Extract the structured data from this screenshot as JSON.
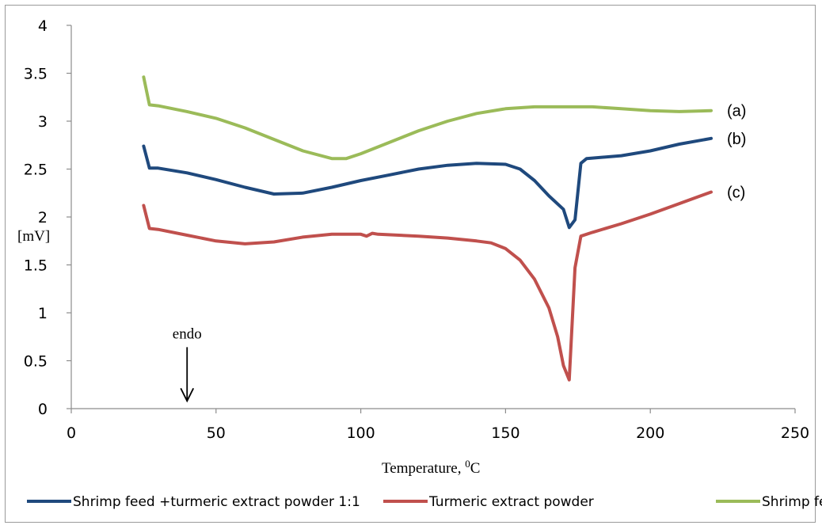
{
  "chart_data": {
    "type": "line",
    "xlabel": "Temperature, ",
    "xlabel_sup": "0",
    "xlabel_unit": "C",
    "ylabel": "[mV]",
    "xlim": [
      0,
      250
    ],
    "ylim": [
      0,
      4
    ],
    "x_ticks": [
      0,
      50,
      100,
      150,
      200,
      250
    ],
    "y_ticks": [
      0,
      0.5,
      1,
      1.5,
      2,
      2.5,
      3,
      3.5,
      4
    ],
    "y_tick_labels": [
      "0",
      "0.5",
      "1",
      "1.5",
      "2",
      "2.5",
      "3",
      "3.5",
      "4"
    ],
    "grid": false,
    "legend_position": "bottom",
    "annotation": {
      "text": "endo",
      "x": 40,
      "y_top": 0.6,
      "y_bottom": 0.08
    },
    "series": [
      {
        "name": "Shrimp feed +turmeric extract powder 1:1",
        "label": "(b)",
        "color": "#1f497d",
        "points": [
          [
            25,
            2.74
          ],
          [
            27,
            2.51
          ],
          [
            30,
            2.51
          ],
          [
            40,
            2.46
          ],
          [
            50,
            2.39
          ],
          [
            60,
            2.31
          ],
          [
            70,
            2.24
          ],
          [
            80,
            2.25
          ],
          [
            90,
            2.31
          ],
          [
            100,
            2.38
          ],
          [
            110,
            2.44
          ],
          [
            120,
            2.5
          ],
          [
            130,
            2.54
          ],
          [
            140,
            2.56
          ],
          [
            150,
            2.55
          ],
          [
            155,
            2.5
          ],
          [
            160,
            2.38
          ],
          [
            165,
            2.22
          ],
          [
            170,
            2.08
          ],
          [
            172,
            1.89
          ],
          [
            174,
            1.97
          ],
          [
            176,
            2.56
          ],
          [
            178,
            2.61
          ],
          [
            190,
            2.64
          ],
          [
            200,
            2.69
          ],
          [
            210,
            2.76
          ],
          [
            221,
            2.82
          ]
        ]
      },
      {
        "name": "Turmeric extract powder",
        "label": "(c)",
        "color": "#c0504d",
        "points": [
          [
            25,
            2.12
          ],
          [
            27,
            1.88
          ],
          [
            30,
            1.87
          ],
          [
            40,
            1.81
          ],
          [
            50,
            1.75
          ],
          [
            60,
            1.72
          ],
          [
            70,
            1.74
          ],
          [
            80,
            1.79
          ],
          [
            90,
            1.82
          ],
          [
            100,
            1.82
          ],
          [
            102,
            1.8
          ],
          [
            104,
            1.83
          ],
          [
            106,
            1.82
          ],
          [
            120,
            1.8
          ],
          [
            130,
            1.78
          ],
          [
            140,
            1.75
          ],
          [
            145,
            1.73
          ],
          [
            150,
            1.67
          ],
          [
            155,
            1.55
          ],
          [
            160,
            1.35
          ],
          [
            165,
            1.05
          ],
          [
            168,
            0.75
          ],
          [
            170,
            0.45
          ],
          [
            172,
            0.3
          ],
          [
            174,
            1.47
          ],
          [
            176,
            1.8
          ],
          [
            180,
            1.84
          ],
          [
            190,
            1.93
          ],
          [
            200,
            2.03
          ],
          [
            210,
            2.14
          ],
          [
            221,
            2.26
          ]
        ]
      },
      {
        "name": "Shrimp feed",
        "label": "(a)",
        "color": "#9bbb59",
        "points": [
          [
            25,
            3.46
          ],
          [
            27,
            3.17
          ],
          [
            30,
            3.16
          ],
          [
            40,
            3.1
          ],
          [
            50,
            3.03
          ],
          [
            60,
            2.93
          ],
          [
            70,
            2.81
          ],
          [
            80,
            2.69
          ],
          [
            90,
            2.61
          ],
          [
            95,
            2.61
          ],
          [
            100,
            2.66
          ],
          [
            110,
            2.78
          ],
          [
            120,
            2.9
          ],
          [
            130,
            3.0
          ],
          [
            140,
            3.08
          ],
          [
            150,
            3.13
          ],
          [
            160,
            3.15
          ],
          [
            170,
            3.15
          ],
          [
            180,
            3.15
          ],
          [
            190,
            3.13
          ],
          [
            200,
            3.11
          ],
          [
            210,
            3.1
          ],
          [
            221,
            3.11
          ]
        ]
      }
    ]
  }
}
